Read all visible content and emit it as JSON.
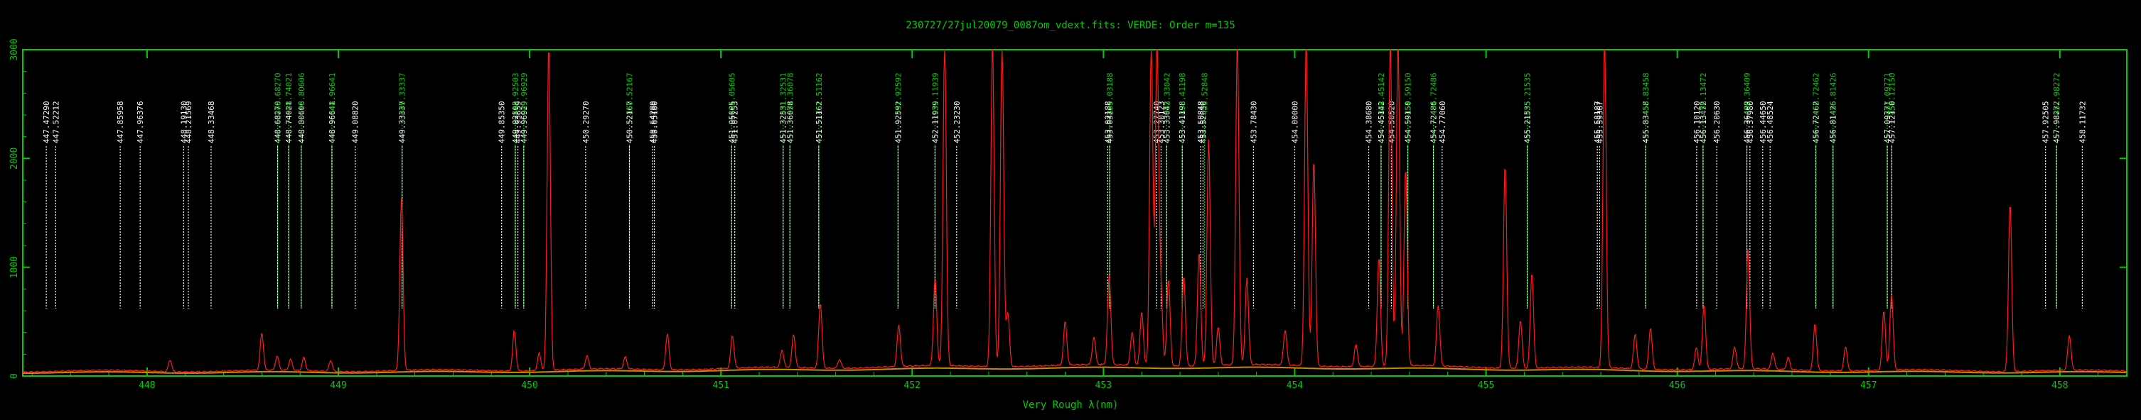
{
  "chart_data": {
    "type": "line",
    "title": "230727/27jul20079_0087om_vdext.fits: VERDE: Order m=135",
    "xlabel": "Very Rough λ(nm)",
    "ylabel": "",
    "xlim": [
      447.35,
      458.35
    ],
    "ylim": [
      0,
      3000
    ],
    "x_ticks": [
      448,
      449,
      450,
      451,
      452,
      453,
      454,
      455,
      456,
      457,
      458
    ],
    "y_ticks": [
      0,
      1000,
      2000,
      3000
    ],
    "y_tick_labels": [
      "0",
      "1000",
      "2000",
      "3000"
    ],
    "grid": false,
    "colors": {
      "background": "#000000",
      "axes": "#00cc00",
      "spectrum": "#ff1a1a",
      "continuum": "#cc8800",
      "white_markers": "#ffffff",
      "green_markers": "#00cc00"
    },
    "white_lines": [
      {
        "x": 447.4729,
        "label": "447.47290"
      },
      {
        "x": 447.52212,
        "label": "447.52212"
      },
      {
        "x": 447.85958,
        "label": "447.85958"
      },
      {
        "x": 447.96376,
        "label": "447.96376"
      },
      {
        "x": 448.1913,
        "label": "448.19130"
      },
      {
        "x": 448.21569,
        "label": "448.21569"
      },
      {
        "x": 448.33468,
        "label": "448.33468"
      },
      {
        "x": 448.6827,
        "label": "448.68270"
      },
      {
        "x": 448.74021,
        "label": "448.74021"
      },
      {
        "x": 448.80606,
        "label": "448.80606"
      },
      {
        "x": 448.96641,
        "label": "448.96641"
      },
      {
        "x": 449.0882,
        "label": "449.08820"
      },
      {
        "x": 449.33337,
        "label": "449.33337"
      },
      {
        "x": 449.8535,
        "label": "449.85350"
      },
      {
        "x": 449.92503,
        "label": "449.92503"
      },
      {
        "x": 449.93859,
        "label": "449.93859"
      },
      {
        "x": 449.96929,
        "label": "449.96929"
      },
      {
        "x": 450.2927,
        "label": "450.29270"
      },
      {
        "x": 450.52167,
        "label": "450.52167"
      },
      {
        "x": 450.6428,
        "label": "450.64280"
      },
      {
        "x": 450.6518,
        "label": "450.65180"
      },
      {
        "x": 451.05605,
        "label": "451.05605"
      },
      {
        "x": 451.07253,
        "label": "451.07253"
      },
      {
        "x": 451.32531,
        "label": "451.32531"
      },
      {
        "x": 451.36078,
        "label": "451.36078"
      },
      {
        "x": 451.51162,
        "label": "451.51162"
      },
      {
        "x": 451.92592,
        "label": "451.92592"
      },
      {
        "x": 452.11939,
        "label": "452.11939"
      },
      {
        "x": 452.2323,
        "label": "452.23230"
      },
      {
        "x": 453.02188,
        "label": "453.02188"
      },
      {
        "x": 453.03265,
        "label": "453.03265"
      },
      {
        "x": 453.2774,
        "label": "453.27740"
      },
      {
        "x": 453.30123,
        "label": "453.30123"
      },
      {
        "x": 453.33042,
        "label": "453.33042"
      },
      {
        "x": 453.41198,
        "label": "453.41198"
      },
      {
        "x": 453.50848,
        "label": "453.50848"
      },
      {
        "x": 453.5205,
        "label": "453.52050"
      },
      {
        "x": 453.7843,
        "label": "453.78430"
      },
      {
        "x": 454.0,
        "label": "454.00000"
      },
      {
        "x": 454.3868,
        "label": "454.38680"
      },
      {
        "x": 454.45142,
        "label": "454.45142"
      },
      {
        "x": 454.5052,
        "label": "454.50520"
      },
      {
        "x": 454.5915,
        "label": "454.59150"
      },
      {
        "x": 454.72486,
        "label": "454.72486"
      },
      {
        "x": 454.7706,
        "label": "454.77060"
      },
      {
        "x": 455.21535,
        "label": "455.21535"
      },
      {
        "x": 455.58187,
        "label": "455.58187"
      },
      {
        "x": 455.59367,
        "label": "455.59367"
      },
      {
        "x": 455.83458,
        "label": "455.83458"
      },
      {
        "x": 456.1012,
        "label": "456.10120"
      },
      {
        "x": 456.13472,
        "label": "456.13472"
      },
      {
        "x": 456.2063,
        "label": "456.20630"
      },
      {
        "x": 456.36409,
        "label": "456.36409"
      },
      {
        "x": 456.3798,
        "label": "456.37980"
      },
      {
        "x": 456.4465,
        "label": "456.44650"
      },
      {
        "x": 456.48524,
        "label": "456.48524"
      },
      {
        "x": 456.72462,
        "label": "456.72462"
      },
      {
        "x": 456.81426,
        "label": "456.81426"
      },
      {
        "x": 457.09771,
        "label": "457.09771"
      },
      {
        "x": 457.1215,
        "label": "457.12150"
      },
      {
        "x": 457.92505,
        "label": "457.92505"
      },
      {
        "x": 457.98272,
        "label": "457.98272"
      },
      {
        "x": 458.11732,
        "label": "458.11732"
      }
    ],
    "green_lines": [
      {
        "x": 448.6827,
        "label": "448.68270"
      },
      {
        "x": 448.74021,
        "label": "448.74021"
      },
      {
        "x": 448.80606,
        "label": "448.80606"
      },
      {
        "x": 448.96641,
        "label": "448.96641"
      },
      {
        "x": 449.33337,
        "label": "449.33337"
      },
      {
        "x": 449.92503,
        "label": "449.92503"
      },
      {
        "x": 449.96929,
        "label": "449.96929"
      },
      {
        "x": 450.52167,
        "label": "450.52167"
      },
      {
        "x": 451.05605,
        "label": "451.05605"
      },
      {
        "x": 451.32531,
        "label": "451.32531"
      },
      {
        "x": 451.36078,
        "label": "451.36078"
      },
      {
        "x": 451.51162,
        "label": "451.51162"
      },
      {
        "x": 451.92592,
        "label": "451.92592"
      },
      {
        "x": 452.11939,
        "label": "452.11939"
      },
      {
        "x": 453.03188,
        "label": "453.03188"
      },
      {
        "x": 453.33042,
        "label": "453.33042"
      },
      {
        "x": 453.41198,
        "label": "453.41198"
      },
      {
        "x": 453.52848,
        "label": "453.52848"
      },
      {
        "x": 454.45142,
        "label": "454.45142"
      },
      {
        "x": 454.5915,
        "label": "454.59150"
      },
      {
        "x": 454.72486,
        "label": "454.72486"
      },
      {
        "x": 455.21535,
        "label": "455.21535"
      },
      {
        "x": 455.83458,
        "label": "455.83458"
      },
      {
        "x": 456.13472,
        "label": "456.13472"
      },
      {
        "x": 456.36409,
        "label": "456.36409"
      },
      {
        "x": 456.72462,
        "label": "456.72462"
      },
      {
        "x": 456.81426,
        "label": "456.81426"
      },
      {
        "x": 457.09771,
        "label": "457.09771"
      },
      {
        "x": 457.1215,
        "label": "457.12150"
      },
      {
        "x": 457.98272,
        "label": "457.98272"
      }
    ],
    "series": [
      {
        "peaks": [
          [
            448.12,
            110
          ],
          [
            448.6,
            340
          ],
          [
            448.68,
            130
          ],
          [
            448.75,
            100
          ],
          [
            448.82,
            120
          ],
          [
            448.96,
            100
          ],
          [
            449.33,
            1580
          ],
          [
            449.92,
            370
          ],
          [
            450.05,
            160
          ],
          [
            450.1,
            3000
          ],
          [
            450.3,
            120
          ],
          [
            450.5,
            110
          ],
          [
            450.72,
            330
          ],
          [
            451.06,
            300
          ],
          [
            451.32,
            160
          ],
          [
            451.38,
            300
          ],
          [
            451.52,
            600
          ],
          [
            451.62,
            80
          ],
          [
            451.93,
            380
          ],
          [
            452.12,
            800
          ],
          [
            452.17,
            3000
          ],
          [
            452.42,
            3000
          ],
          [
            452.47,
            3000
          ],
          [
            452.5,
            500
          ],
          [
            452.8,
            400
          ],
          [
            452.95,
            250
          ],
          [
            453.03,
            820
          ],
          [
            453.15,
            300
          ],
          [
            453.2,
            500
          ],
          [
            453.25,
            3000
          ],
          [
            453.28,
            3000
          ],
          [
            453.3,
            700
          ],
          [
            453.34,
            800
          ],
          [
            453.42,
            830
          ],
          [
            453.5,
            1050
          ],
          [
            453.55,
            2080
          ],
          [
            453.6,
            350
          ],
          [
            453.7,
            3000
          ],
          [
            453.75,
            800
          ],
          [
            453.95,
            320
          ],
          [
            454.06,
            3000
          ],
          [
            454.1,
            1900
          ],
          [
            454.32,
            200
          ],
          [
            454.44,
            1000
          ],
          [
            454.5,
            3000
          ],
          [
            454.54,
            3000
          ],
          [
            454.58,
            1820
          ],
          [
            454.75,
            560
          ],
          [
            455.1,
            1870
          ],
          [
            455.18,
            440
          ],
          [
            455.24,
            880
          ],
          [
            455.62,
            3000
          ],
          [
            455.78,
            320
          ],
          [
            455.86,
            380
          ],
          [
            456.1,
            200
          ],
          [
            456.14,
            600
          ],
          [
            456.3,
            200
          ],
          [
            456.37,
            1100
          ],
          [
            456.5,
            150
          ],
          [
            456.58,
            110
          ],
          [
            456.72,
            430
          ],
          [
            456.88,
            220
          ],
          [
            457.08,
            550
          ],
          [
            457.12,
            700
          ],
          [
            457.74,
            1550
          ],
          [
            458.05,
            320
          ]
        ]
      }
    ]
  }
}
